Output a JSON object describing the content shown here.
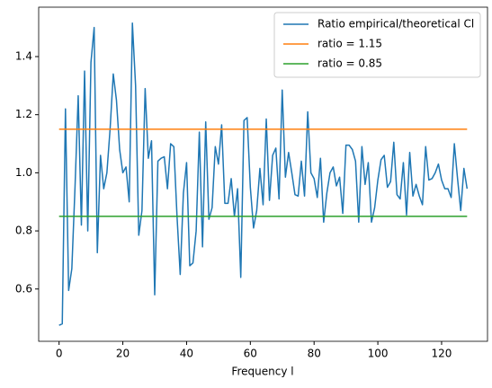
{
  "chart_data": {
    "type": "line",
    "xlabel": "Frequency l",
    "xlim": [
      -6.4,
      134.4
    ],
    "xticks": [
      0,
      20,
      40,
      60,
      80,
      100,
      120
    ],
    "ylim": [
      0.42,
      1.57
    ],
    "yticks": [
      {
        "value": 0.6,
        "label": "0.6"
      },
      {
        "value": 0.8,
        "label": "0.8"
      },
      {
        "value": 1.0,
        "label": "1.0"
      },
      {
        "value": 1.2,
        "label": "1.2"
      },
      {
        "value": 1.4,
        "label": "1.4"
      }
    ],
    "legend": "upper right",
    "series": [
      {
        "name": "Ratio empirical/theoretical Cl",
        "color": "#1f77b4",
        "x": [
          0,
          1,
          2,
          3,
          4,
          5,
          6,
          7,
          8,
          9,
          10,
          11,
          12,
          13,
          14,
          15,
          16,
          17,
          18,
          19,
          20,
          21,
          22,
          23,
          24,
          25,
          26,
          27,
          28,
          29,
          30,
          31,
          32,
          33,
          34,
          35,
          36,
          37,
          38,
          39,
          40,
          41,
          42,
          43,
          44,
          45,
          46,
          47,
          48,
          49,
          50,
          51,
          52,
          53,
          54,
          55,
          56,
          57,
          58,
          59,
          60,
          61,
          62,
          63,
          64,
          65,
          66,
          67,
          68,
          69,
          70,
          71,
          72,
          73,
          74,
          75,
          76,
          77,
          78,
          79,
          80,
          81,
          82,
          83,
          84,
          85,
          86,
          87,
          88,
          89,
          90,
          91,
          92,
          93,
          94,
          95,
          96,
          97,
          98,
          99,
          100,
          101,
          102,
          103,
          104,
          105,
          106,
          107,
          108,
          109,
          110,
          111,
          112,
          113,
          114,
          115,
          116,
          117,
          118,
          119,
          120,
          121,
          122,
          123,
          124,
          125,
          126,
          127,
          128
        ],
        "values": [
          0.475,
          0.48,
          1.22,
          0.595,
          0.67,
          0.95,
          1.265,
          0.82,
          1.35,
          0.8,
          1.38,
          1.5,
          0.725,
          1.06,
          0.945,
          1.0,
          1.15,
          1.34,
          1.25,
          1.08,
          1.0,
          1.02,
          0.9,
          1.515,
          1.3,
          0.785,
          0.87,
          1.29,
          1.05,
          1.11,
          0.58,
          1.04,
          1.05,
          1.055,
          0.945,
          1.1,
          1.09,
          0.85,
          0.65,
          0.93,
          1.035,
          0.68,
          0.69,
          0.8,
          1.14,
          0.745,
          1.175,
          0.84,
          0.88,
          1.09,
          1.03,
          1.165,
          0.895,
          0.895,
          0.98,
          0.85,
          0.945,
          0.64,
          1.18,
          1.19,
          0.95,
          0.81,
          0.87,
          1.015,
          0.89,
          1.185,
          0.905,
          1.06,
          1.085,
          0.91,
          1.285,
          0.985,
          1.07,
          1.0,
          0.925,
          0.92,
          1.04,
          0.92,
          1.21,
          1.0,
          0.98,
          0.915,
          1.05,
          0.83,
          0.93,
          1.0,
          1.02,
          0.955,
          0.985,
          0.86,
          1.095,
          1.095,
          1.08,
          1.04,
          0.83,
          1.09,
          0.96,
          1.035,
          0.83,
          0.88,
          0.975,
          1.045,
          1.06,
          0.95,
          0.97,
          1.105,
          0.925,
          0.91,
          1.035,
          0.855,
          1.07,
          0.92,
          0.96,
          0.92,
          0.89,
          1.09,
          0.975,
          0.98,
          1.0,
          1.03,
          0.975,
          0.945,
          0.945,
          0.915,
          1.1,
          0.98,
          0.87,
          1.015,
          0.945
        ]
      },
      {
        "name": "ratio = 1.15",
        "color": "#ff7f0e",
        "x": [
          0,
          128
        ],
        "values": [
          1.15,
          1.15
        ]
      },
      {
        "name": "ratio = 0.85",
        "color": "#2ca02c",
        "x": [
          0,
          128
        ],
        "values": [
          0.85,
          0.85
        ]
      }
    ]
  }
}
